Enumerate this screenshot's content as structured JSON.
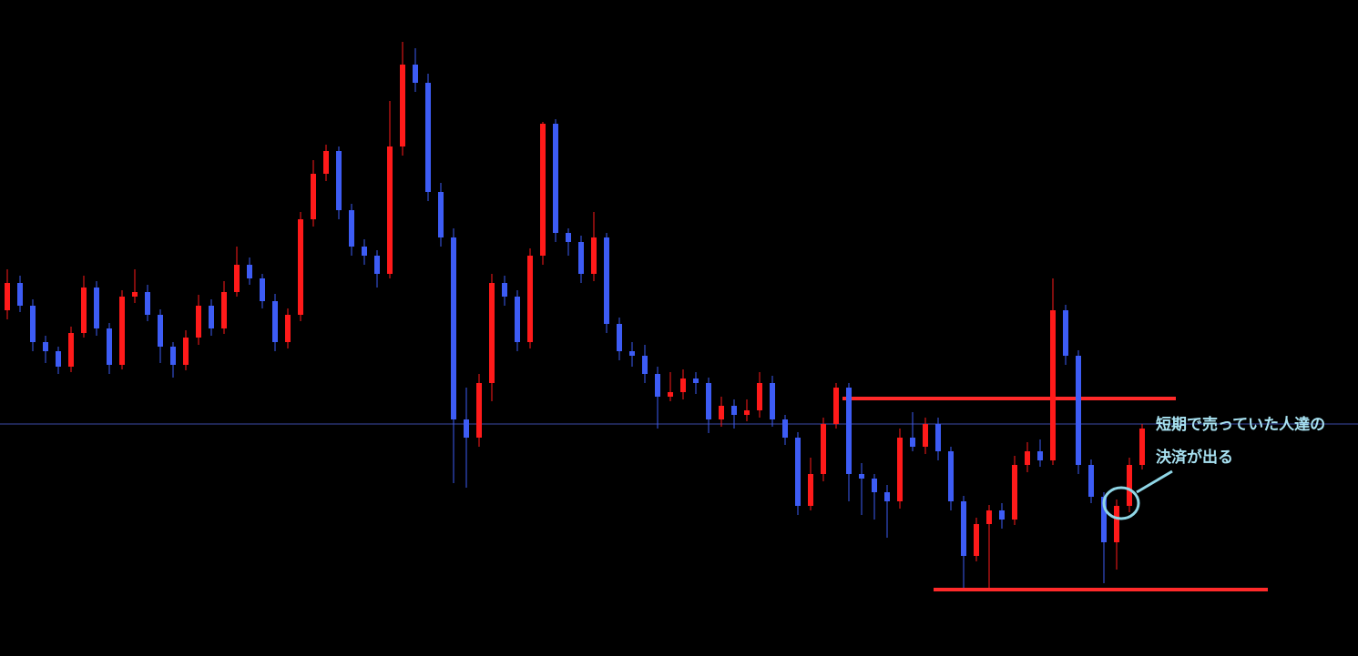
{
  "chart_data": {
    "type": "candlestick",
    "ylim": [
      0,
      721
    ],
    "up_color": "#ff1a1a",
    "down_color": "#3d5cf5",
    "open": [
      380,
      410,
      385,
      345,
      335,
      318,
      355,
      405,
      360,
      320,
      395,
      400,
      375,
      340,
      320,
      350,
      385,
      360,
      400,
      430,
      415,
      390,
      345,
      375,
      480,
      530,
      555,
      490,
      450,
      440,
      420,
      560,
      650,
      630,
      510,
      460,
      260,
      240,
      300,
      410,
      395,
      345,
      440,
      585,
      465,
      455,
      420,
      460,
      365,
      335,
      330,
      310,
      285,
      290,
      305,
      300,
      260,
      275,
      265,
      270,
      300,
      260,
      240,
      165,
      200,
      255,
      295,
      200,
      195,
      180,
      170,
      240,
      230,
      255,
      225,
      170,
      110,
      145,
      160,
      150,
      210,
      225,
      215,
      380,
      330,
      210,
      175,
      125,
      165,
      210
    ],
    "high": [
      425,
      418,
      392,
      352,
      340,
      362,
      418,
      412,
      366,
      402,
      425,
      408,
      381,
      345,
      358,
      397,
      392,
      412,
      450,
      438,
      420,
      398,
      382,
      488,
      545,
      562,
      560,
      497,
      458,
      446,
      610,
      675,
      668,
      640,
      520,
      470,
      295,
      310,
      420,
      418,
      402,
      448,
      587,
      590,
      470,
      462,
      488,
      465,
      372,
      345,
      342,
      318,
      312,
      315,
      312,
      306,
      285,
      282,
      282,
      312,
      308,
      265,
      246,
      218,
      262,
      300,
      300,
      212,
      200,
      188,
      250,
      268,
      262,
      262,
      230,
      176,
      152,
      166,
      168,
      220,
      235,
      238,
      415,
      386,
      336,
      216,
      180,
      172,
      218,
      255
    ],
    "low": [
      370,
      378,
      335,
      322,
      310,
      312,
      350,
      352,
      310,
      315,
      388,
      368,
      322,
      306,
      314,
      342,
      352,
      354,
      395,
      408,
      382,
      335,
      338,
      368,
      472,
      522,
      480,
      440,
      430,
      405,
      415,
      550,
      620,
      500,
      450,
      190,
      185,
      230,
      280,
      385,
      335,
      338,
      430,
      455,
      440,
      410,
      412,
      355,
      325,
      318,
      300,
      250,
      280,
      282,
      288,
      245,
      252,
      250,
      258,
      262,
      252,
      232,
      155,
      160,
      192,
      250,
      170,
      155,
      150,
      130,
      162,
      225,
      222,
      215,
      160,
      75,
      104,
      75,
      140,
      144,
      202,
      208,
      210,
      320,
      200,
      168,
      80,
      95,
      158,
      205
    ],
    "close": [
      410,
      385,
      345,
      335,
      318,
      355,
      405,
      360,
      320,
      395,
      400,
      375,
      340,
      320,
      350,
      385,
      360,
      400,
      430,
      415,
      390,
      345,
      375,
      480,
      530,
      555,
      490,
      450,
      440,
      420,
      560,
      650,
      630,
      510,
      460,
      260,
      240,
      300,
      410,
      395,
      345,
      440,
      585,
      465,
      455,
      420,
      460,
      365,
      335,
      330,
      310,
      285,
      290,
      305,
      300,
      260,
      275,
      265,
      270,
      300,
      260,
      240,
      165,
      200,
      255,
      295,
      200,
      195,
      180,
      170,
      240,
      230,
      255,
      225,
      170,
      110,
      145,
      160,
      150,
      210,
      225,
      215,
      380,
      330,
      210,
      175,
      125,
      165,
      210,
      250
    ],
    "hlines": [
      {
        "value": 283,
        "color": "#ff2a2a"
      },
      {
        "value": 73,
        "color": "#ff2a2a"
      },
      {
        "value": 255,
        "color": "#3d4aa8"
      }
    ],
    "annotation": [
      "短期で売っていた人達の",
      "決済が出る"
    ]
  }
}
